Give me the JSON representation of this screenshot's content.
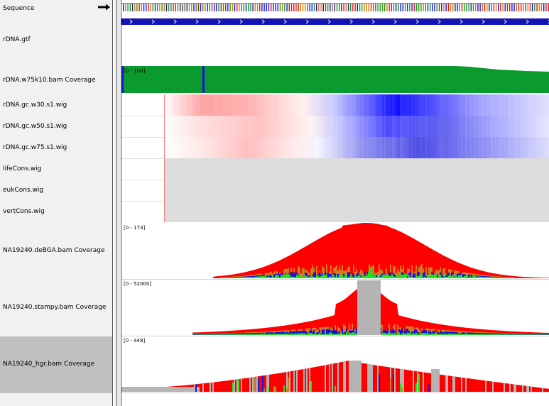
{
  "tracks": {
    "sequence": "Sequence",
    "gtf": "rDNA.gtf",
    "w75k10": "rDNA.w75k10.bam Coverage",
    "gc30": "rDNA.gc.w30.s1.wig",
    "gc50": "rDNA.gc.w50.s1.wig",
    "gc75": "rDNA.gc.w75.s1.wig",
    "life": "lifeCons.wig",
    "euk": "eukCons.wig",
    "vert": "vertCons.wig",
    "debga": "NA19240.deBGA.bam Coverage",
    "stampy": "NA19240.stampy.bam Coverage",
    "hgr": "NA19240_hgr.bam Coverage"
  },
  "ranges": {
    "w75k10": "[0 - 100]",
    "debga": "[0 - 173]",
    "stampy": "[0 - 52000]",
    "hgr": "[0 - 448]"
  },
  "colors": {
    "coverage_green": "#0a9a2e",
    "coverage_gray": "#b4b4b4",
    "mismatch_red": "#ff0000",
    "mismatch_blue": "#1414dc",
    "mismatch_orange": "#d2781e",
    "mismatch_green": "#1ee61e",
    "gene_blue": "#1414b4"
  }
}
